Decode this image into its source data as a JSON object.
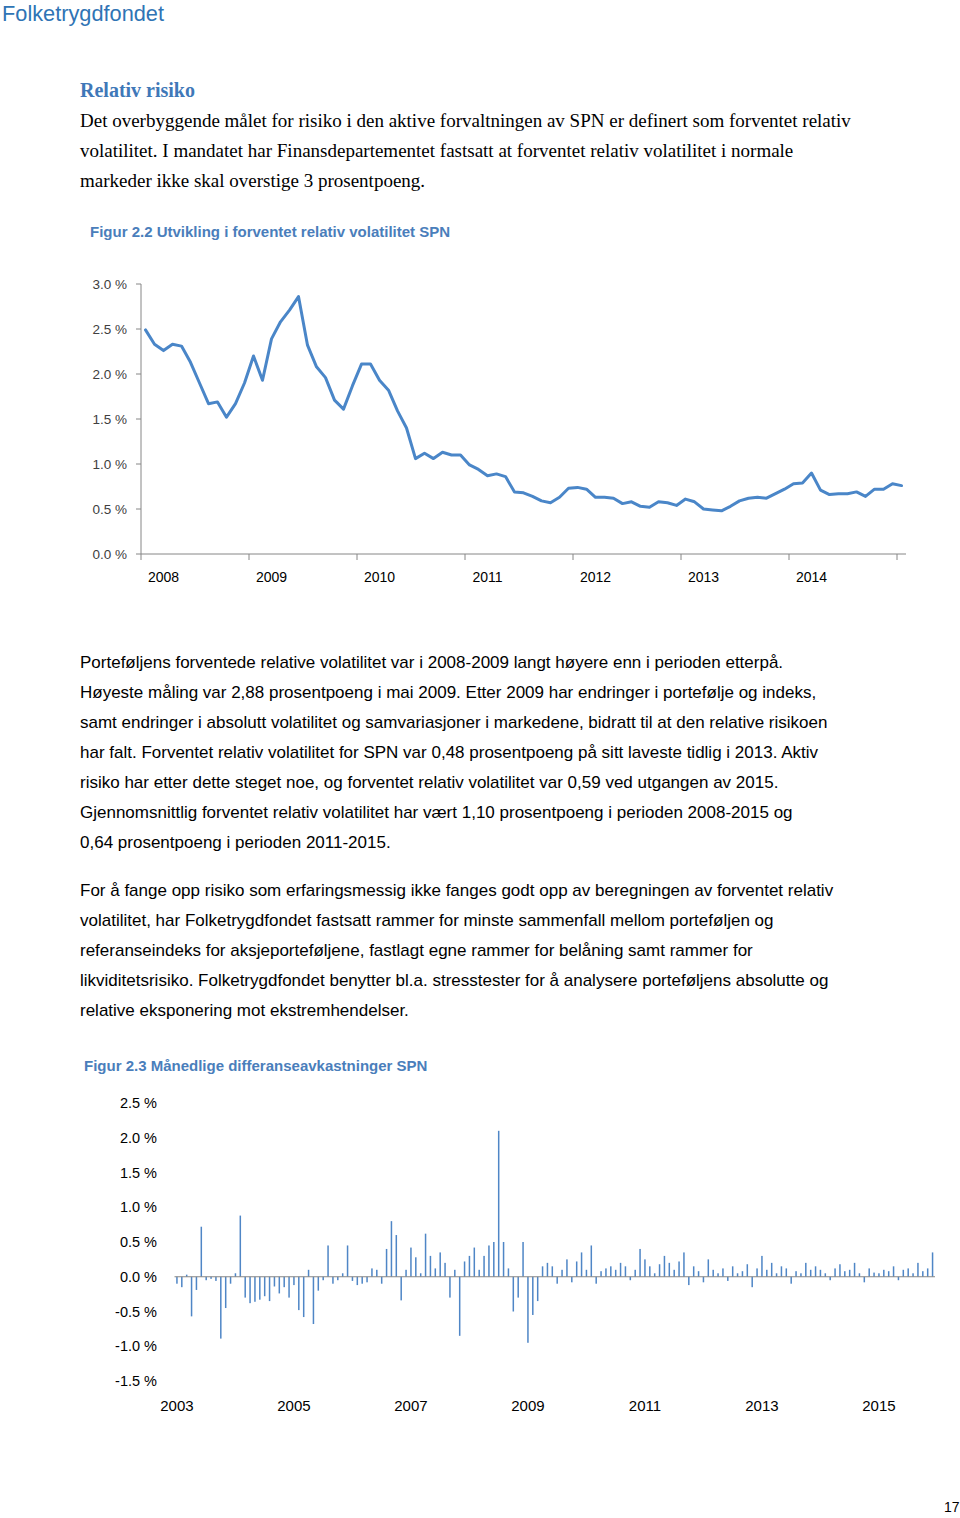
{
  "header": {
    "logo": "Folketrygdfondet"
  },
  "section": {
    "heading": "Relativ risiko",
    "intro_lines": [
      "Det overbyggende målet for risiko i den aktive forvaltningen av SPN er definert som forventet relativ",
      "volatilitet. I mandatet har Finansdepartementet fastsatt at forventet relativ volatilitet i normale",
      "markeder ikke skal overstige 3 prosentpoeng."
    ]
  },
  "paragraphs": [
    [
      "Porteføljens forventede relative volatilitet var i 2008-2009 langt høyere enn i perioden etterpå.",
      "Høyeste måling var 2,88 prosentpoeng i mai 2009. Etter 2009 har endringer i portefølje og indeks,",
      "samt endringer i absolutt volatilitet og samvariasjoner i markedene, bidratt til at den relative risikoen",
      "har falt. Forventet relativ volatilitet for SPN var 0,48 prosentpoeng på sitt laveste tidlig i 2013. Aktiv",
      "risiko har etter dette steget noe, og forventet relativ volatilitet var 0,59 ved utgangen av 2015.",
      "Gjennomsnittlig forventet relativ volatilitet har vært 1,10 prosentpoeng i perioden 2008-2015 og",
      "0,64 prosentpoeng i perioden 2011-2015."
    ],
    [
      "For å fange opp risiko som erfaringsmessig ikke fanges godt opp av beregningen av forventet relativ",
      "volatilitet, har Folketrygdfondet fastsatt rammer for minste sammenfall mellom porteføljen og",
      "referanseindeks for aksjeporteføljene, fastlagt egne rammer for belåning samt rammer for",
      "likviditetsrisiko. Folketrygdfondet benytter bl.a. stresstester for å analysere porteføljens absolutte og",
      "relative eksponering mot ekstremhendelser."
    ]
  ],
  "page_number": "17",
  "chart_data": [
    {
      "type": "line",
      "title": "Figur 2.2 Utvikling i forventet relativ volatilitet SPN",
      "categories": [
        null,
        null,
        "2008",
        null,
        null,
        null,
        null,
        null,
        null,
        null,
        null,
        null,
        null,
        null,
        "2009",
        null,
        null,
        null,
        null,
        null,
        null,
        null,
        null,
        null,
        null,
        null,
        "2010",
        null,
        null,
        null,
        null,
        null,
        null,
        null,
        null,
        null,
        null,
        null,
        "2011",
        null,
        null,
        null,
        null,
        null,
        null,
        null,
        null,
        null,
        null,
        null,
        "2012",
        null,
        null,
        null,
        null,
        null,
        null,
        null,
        null,
        null,
        null,
        null,
        "2013",
        null,
        null,
        null,
        null,
        null,
        null,
        null,
        null,
        null,
        null,
        null,
        "2014",
        null,
        null,
        null,
        null,
        null,
        null,
        null,
        null,
        null,
        null
      ],
      "values": [
        2.49,
        2.33,
        2.26,
        2.33,
        2.31,
        2.13,
        1.9,
        1.67,
        1.69,
        1.52,
        1.67,
        1.9,
        2.2,
        1.93,
        2.39,
        2.58,
        2.71,
        2.86,
        2.32,
        2.08,
        1.96,
        1.71,
        1.61,
        1.87,
        2.11,
        2.11,
        1.93,
        1.82,
        1.59,
        1.4,
        1.06,
        1.12,
        1.06,
        1.13,
        1.1,
        1.1,
        0.99,
        0.94,
        0.87,
        0.89,
        0.86,
        0.69,
        0.68,
        0.64,
        0.59,
        0.57,
        0.63,
        0.73,
        0.74,
        0.72,
        0.63,
        0.63,
        0.62,
        0.56,
        0.58,
        0.53,
        0.52,
        0.58,
        0.57,
        0.54,
        0.61,
        0.58,
        0.5,
        0.49,
        0.48,
        0.53,
        0.59,
        0.62,
        0.63,
        0.62,
        0.67,
        0.72,
        0.78,
        0.79,
        0.9,
        0.71,
        0.66,
        0.67,
        0.67,
        0.69,
        0.64,
        0.72,
        0.72,
        0.78,
        0.76
      ],
      "color": "#4a86c8",
      "ylim": [
        0,
        3
      ],
      "yticks": [
        {
          "value": 0,
          "label": "0.0 %"
        },
        {
          "value": 0.5,
          "label": "0.5 %"
        },
        {
          "value": 1,
          "label": "1.0 %"
        },
        {
          "value": 1.5,
          "label": "1.5 %"
        },
        {
          "value": 2,
          "label": "2.0 %"
        },
        {
          "value": 2.5,
          "label": "2.5 %"
        },
        {
          "value": 3,
          "label": "3.0 %"
        }
      ],
      "grid": false
    },
    {
      "type": "bar",
      "title": "Figur 2.3 Månedlige differanseavkastninger SPN",
      "categories": [
        "2003",
        null,
        null,
        null,
        null,
        null,
        null,
        null,
        null,
        null,
        null,
        null,
        null,
        null,
        null,
        null,
        null,
        null,
        null,
        null,
        null,
        null,
        null,
        null,
        "2005",
        null,
        null,
        null,
        null,
        null,
        null,
        null,
        null,
        null,
        null,
        null,
        null,
        null,
        null,
        null,
        null,
        null,
        null,
        null,
        null,
        null,
        null,
        null,
        "2007",
        null,
        null,
        null,
        null,
        null,
        null,
        null,
        null,
        null,
        null,
        null,
        null,
        null,
        null,
        null,
        null,
        null,
        null,
        null,
        null,
        null,
        null,
        null,
        "2009",
        null,
        null,
        null,
        null,
        null,
        null,
        null,
        null,
        null,
        null,
        null,
        null,
        null,
        null,
        null,
        null,
        null,
        null,
        null,
        null,
        null,
        null,
        null,
        "2011",
        null,
        null,
        null,
        null,
        null,
        null,
        null,
        null,
        null,
        null,
        null,
        null,
        null,
        null,
        null,
        null,
        null,
        null,
        null,
        null,
        null,
        null,
        null,
        "2013",
        null,
        null,
        null,
        null,
        null,
        null,
        null,
        null,
        null,
        null,
        null,
        null,
        null,
        null,
        null,
        null,
        null,
        null,
        null,
        null,
        null,
        null,
        null,
        "2015",
        null,
        null,
        null,
        null,
        null,
        null,
        null,
        null,
        null,
        null,
        null
      ],
      "values": [
        -0.1,
        -0.15,
        0.03,
        -0.57,
        -0.19,
        0.72,
        -0.05,
        -0.03,
        -0.06,
        -0.89,
        -0.45,
        -0.1,
        0.05,
        0.88,
        -0.3,
        -0.38,
        -0.36,
        -0.33,
        -0.28,
        -0.35,
        -0.14,
        -0.24,
        -0.15,
        -0.3,
        -0.12,
        -0.48,
        -0.58,
        0.1,
        -0.68,
        -0.2,
        -0.05,
        0.45,
        -0.1,
        -0.05,
        0.05,
        0.45,
        -0.06,
        -0.12,
        -0.1,
        -0.08,
        0.12,
        0.1,
        -0.1,
        0.4,
        0.8,
        0.6,
        -0.34,
        0.1,
        0.42,
        0.28,
        0.05,
        0.62,
        0.3,
        0.12,
        0.35,
        0.2,
        -0.3,
        0.1,
        -0.85,
        0.22,
        0.3,
        0.42,
        0.1,
        0.3,
        0.45,
        0.5,
        2.1,
        0.5,
        0.12,
        -0.5,
        -0.3,
        0.5,
        -0.95,
        -0.55,
        -0.35,
        0.15,
        0.2,
        0.15,
        -0.1,
        0.1,
        0.25,
        -0.08,
        0.22,
        0.35,
        0.1,
        0.45,
        -0.1,
        0.08,
        0.12,
        0.15,
        0.1,
        0.2,
        0.15,
        -0.05,
        0.1,
        0.4,
        0.25,
        0.15,
        0.05,
        0.18,
        0.3,
        0.2,
        0.1,
        0.22,
        0.35,
        -0.12,
        0.15,
        0.08,
        -0.08,
        0.25,
        0.1,
        0.05,
        0.12,
        -0.06,
        0.15,
        0.05,
        0.08,
        0.18,
        -0.15,
        0.12,
        0.3,
        0.1,
        0.2,
        0.05,
        0.15,
        0.12,
        -0.1,
        0.08,
        0.05,
        0.2,
        0.1,
        0.15,
        0.1,
        0.05,
        -0.05,
        0.12,
        0.18,
        0.08,
        0.1,
        0.2,
        0.05,
        -0.08,
        0.12,
        0.06,
        0.05,
        0.1,
        0.08,
        0.15,
        -0.05,
        0.1,
        0.12,
        0.05,
        0.2,
        0.08,
        0.12,
        0.35
      ],
      "color": "#4f86c6",
      "ylim": [
        -1.5,
        2.5
      ],
      "yticks": [
        {
          "value": -1.5,
          "label": "-1.5 %"
        },
        {
          "value": -1,
          "label": "-1.0 %"
        },
        {
          "value": -0.5,
          "label": "-0.5 %"
        },
        {
          "value": 0,
          "label": "0.0 %"
        },
        {
          "value": 0.5,
          "label": "0.5 %"
        },
        {
          "value": 1,
          "label": "1.0 %"
        },
        {
          "value": 1.5,
          "label": "1.5 %"
        },
        {
          "value": 2,
          "label": "2.0 %"
        },
        {
          "value": 2.5,
          "label": "2.5 %"
        }
      ],
      "grid": false
    }
  ]
}
